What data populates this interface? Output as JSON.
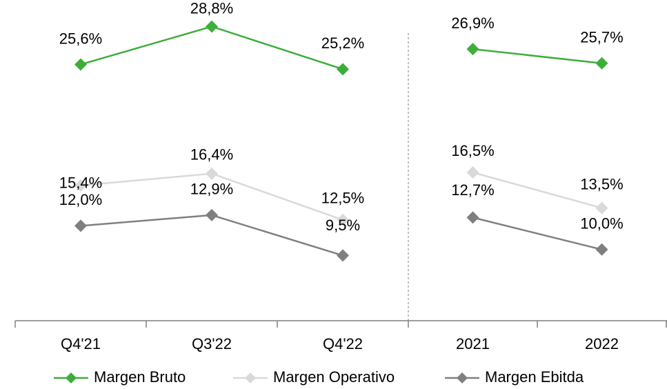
{
  "legend": {
    "entries": [
      {
        "name": "Margen Bruto",
        "color": "#3dae3a"
      },
      {
        "name": "Margen Operativo",
        "color": "#d9d9d9"
      },
      {
        "name": "Margen Ebitda",
        "color": "#7f7f7f"
      }
    ]
  },
  "chart_data": [
    {
      "type": "line",
      "categories": [
        "Q4'21",
        "Q3'22",
        "Q4'22"
      ],
      "ylim": [
        4,
        31
      ],
      "series": [
        {
          "values": [
            25.6,
            28.8,
            25.2
          ],
          "value_labels": [
            "25,6%",
            "28,8%",
            "25,2%"
          ]
        },
        {
          "values": [
            15.4,
            16.4,
            12.5
          ],
          "value_labels": [
            "15,4%",
            "16,4%",
            "12,5%"
          ]
        },
        {
          "values": [
            12.0,
            12.9,
            9.5
          ],
          "value_labels": [
            "12,0%",
            "12,9%",
            "9,5%"
          ]
        }
      ]
    },
    {
      "type": "line",
      "categories": [
        "2021",
        "2022"
      ],
      "ylim": [
        4,
        31
      ],
      "series": [
        {
          "values": [
            26.9,
            25.7
          ],
          "value_labels": [
            "26,9%",
            "25,7%"
          ]
        },
        {
          "values": [
            16.5,
            13.5
          ],
          "value_labels": [
            "16,5%",
            "13,5%"
          ]
        },
        {
          "values": [
            12.7,
            10.0
          ],
          "value_labels": [
            "12,7%",
            "10,0%"
          ]
        }
      ]
    }
  ]
}
